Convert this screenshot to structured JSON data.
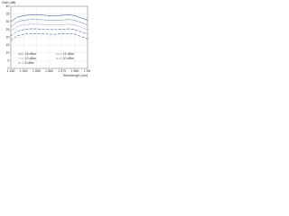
{
  "chart_data": {
    "type": "line",
    "y_label": "Gain (dB)",
    "x_label": "Wavelength (nm)",
    "x": [
      1530,
      1535,
      1540,
      1545,
      1550,
      1555,
      1560,
      1565,
      1570,
      1575,
      1580,
      1585,
      1590
    ],
    "xlim": [
      1530,
      1590
    ],
    "xticks": [
      {
        "value": 1530,
        "label": "1 530"
      },
      {
        "value": 1540,
        "label": "1 540"
      },
      {
        "value": 1550,
        "label": "1 550"
      },
      {
        "value": 1560,
        "label": "1 560"
      },
      {
        "value": 1570,
        "label": "1 570"
      },
      {
        "value": 1580,
        "label": "1 580"
      },
      {
        "value": 1590,
        "label": "1 590"
      }
    ],
    "ylim": [
      0,
      40
    ],
    "yticks": [
      0,
      5,
      10,
      15,
      20,
      25,
      30,
      35,
      40
    ],
    "grid": true,
    "legend": "lower",
    "series": [
      {
        "name": "16 dBm",
        "color": "#1f3f7a",
        "dash": "none",
        "values": [
          30,
          33,
          34,
          34.5,
          34.5,
          34.3,
          34,
          34,
          34.2,
          34.5,
          34,
          32.5,
          31
        ]
      },
      {
        "name": "14 dBm",
        "color": "#1f3f7a",
        "dash": "1.5,0.8",
        "values": [
          27,
          30,
          31,
          31.5,
          31.5,
          31.3,
          31,
          31,
          31.2,
          31.5,
          31,
          29.5,
          28
        ]
      },
      {
        "name": "12 dBm",
        "color": "#1f3f7a",
        "dash": "0.5,0.6",
        "values": [
          24,
          27,
          28,
          28.5,
          28.5,
          28.3,
          28,
          28,
          28.2,
          28.5,
          28,
          26.5,
          25
        ]
      },
      {
        "name": "10 dBm",
        "color": "#1f3f7a",
        "dash": "2.5,0.8,0.5,0.8",
        "values": [
          21,
          24,
          25,
          25.5,
          25.5,
          25.3,
          25,
          25,
          25.2,
          25.5,
          25,
          23.5,
          22
        ]
      },
      {
        "name": "8 dBm",
        "color": "#1f3f7a",
        "dash": "3,1.5",
        "values": [
          18,
          21,
          22,
          22.5,
          22.5,
          22.3,
          22,
          22,
          22.2,
          22.5,
          22,
          20.5,
          19
        ]
      }
    ]
  }
}
